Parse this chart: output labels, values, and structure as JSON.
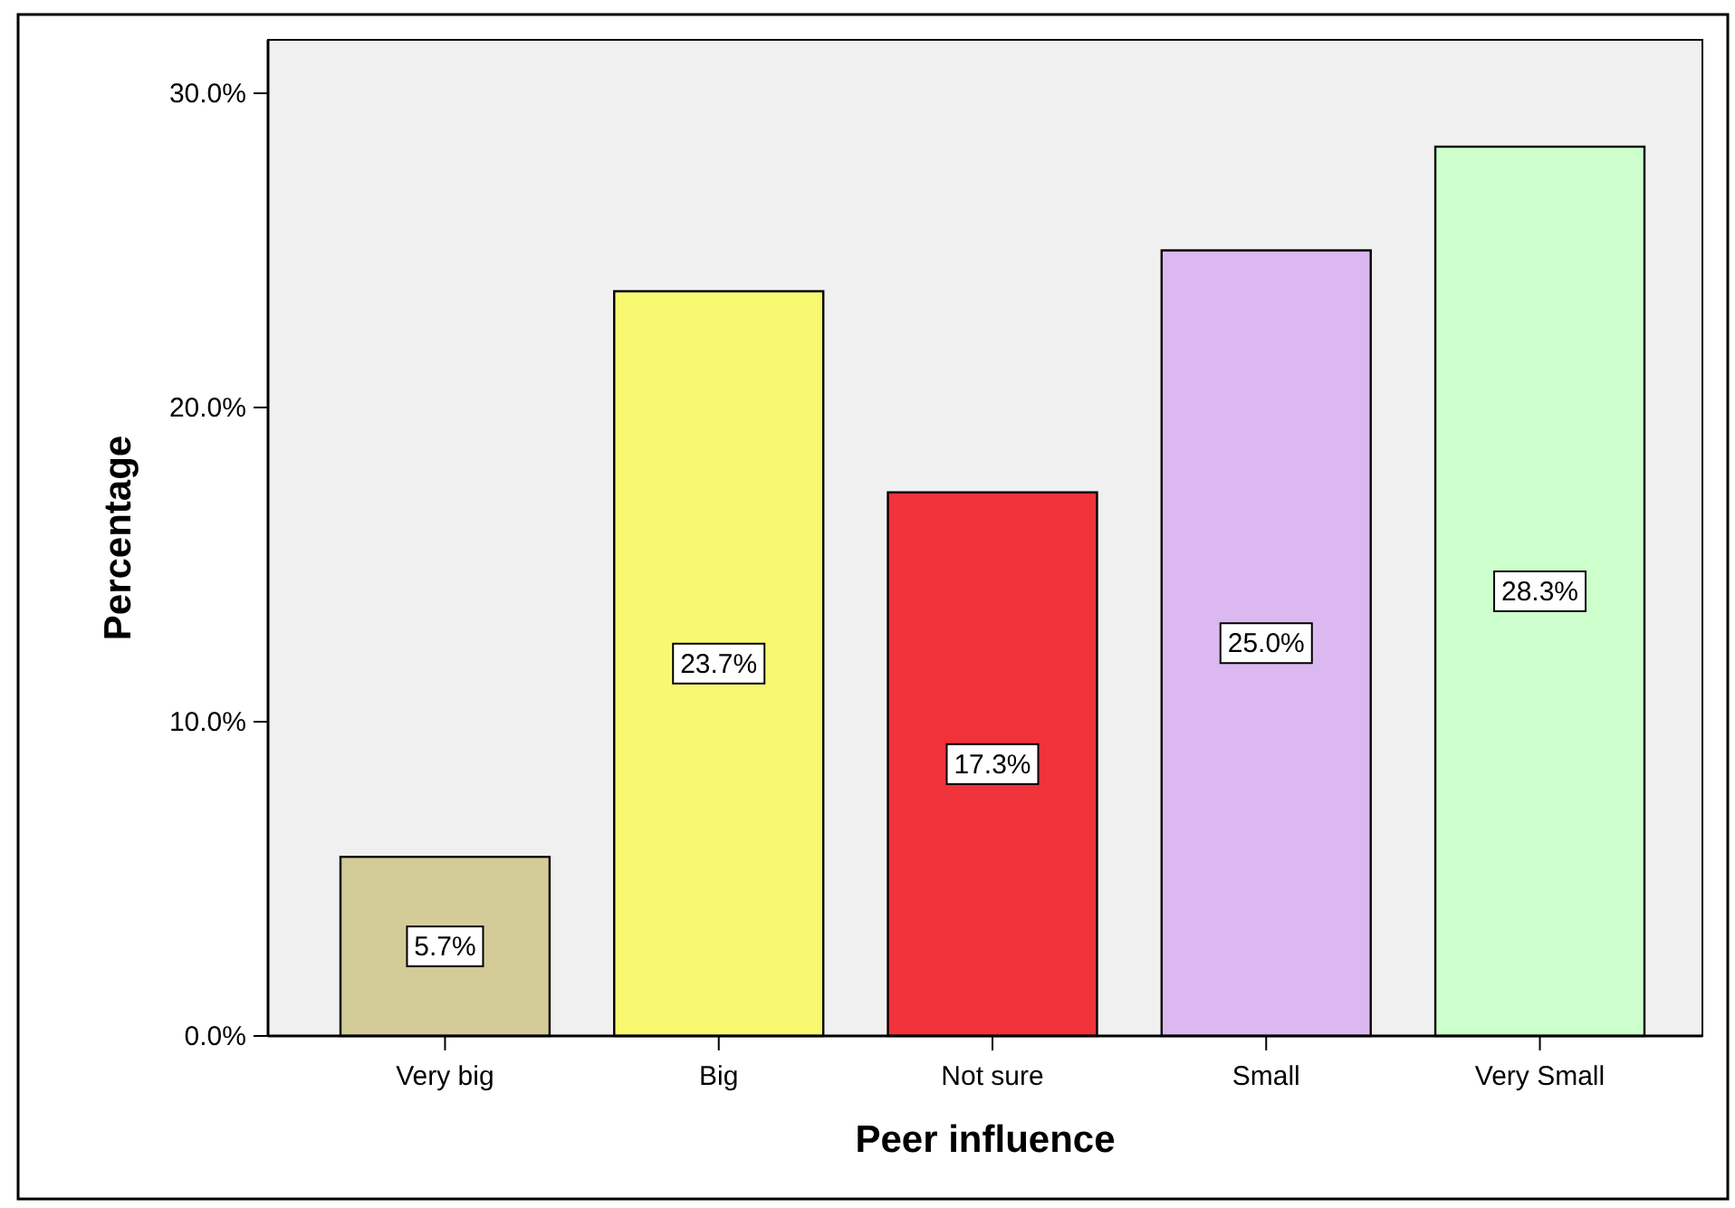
{
  "chart_data": {
    "type": "bar",
    "xlabel": "Peer influence",
    "ylabel": "Percentage",
    "categories": [
      "Very big",
      "Big",
      "Not sure",
      "Small",
      "Very Small"
    ],
    "values": [
      5.7,
      23.7,
      17.3,
      25.0,
      28.3
    ],
    "colors": [
      "#d4cc98",
      "#f9f871",
      "#f0323a",
      "#dcb8f0",
      "#ccffcc"
    ],
    "value_labels": [
      "5.7%",
      "23.7%",
      "17.3%",
      "25.0%",
      "28.3%"
    ],
    "ylim": [
      0,
      31.7
    ],
    "yticks": [
      {
        "value": 0,
        "label": "0.0%"
      },
      {
        "value": 10,
        "label": "10.0%"
      },
      {
        "value": 20,
        "label": "20.0%"
      },
      {
        "value": 30,
        "label": "30.0%"
      }
    ],
    "grid": false
  }
}
